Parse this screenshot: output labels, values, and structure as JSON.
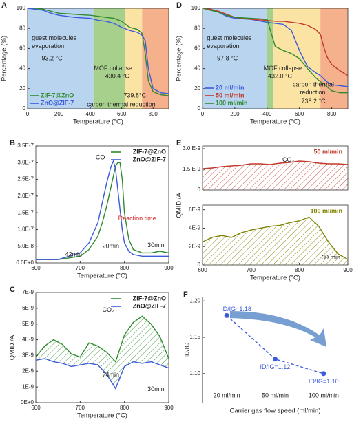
{
  "chart_data": [
    {
      "panel": "A",
      "type": "line",
      "xlabel": "Temperature (°C)",
      "ylabel": "Percentage (%)",
      "xlim": [
        0,
        900
      ],
      "ylim": [
        0,
        100
      ],
      "xticks": [
        0,
        200,
        400,
        600,
        800
      ],
      "yticks": [
        0,
        20,
        40,
        60,
        80,
        100
      ],
      "regions": [
        {
          "from": 0,
          "to": 420,
          "color": "#b8d4ee"
        },
        {
          "from": 420,
          "to": 620,
          "color": "#a8d08d"
        },
        {
          "from": 620,
          "to": 730,
          "color": "#fbe3a4"
        },
        {
          "from": 730,
          "to": 900,
          "color": "#f5b08c"
        }
      ],
      "x": [
        0,
        50,
        100,
        150,
        200,
        300,
        400,
        450,
        500,
        550,
        600,
        650,
        700,
        730,
        750,
        770,
        800,
        850,
        900
      ],
      "series": [
        {
          "name": "ZIF-7@ZnO",
          "color": "#2e8b2e",
          "values": [
            100,
            100,
            99,
            97,
            95,
            94,
            93,
            92,
            91,
            90,
            87,
            81,
            79,
            75,
            55,
            28,
            17,
            14,
            13
          ]
        },
        {
          "name": "ZnO@ZIF-7",
          "color": "#3b5bdb",
          "values": [
            100,
            99,
            98,
            95,
            93,
            91,
            90,
            88,
            87,
            85,
            81,
            78,
            76,
            73,
            68,
            40,
            20,
            16,
            15
          ]
        }
      ],
      "legend": "lower left",
      "annotations": [
        "guest molecules",
        "evaporation",
        "93.2 °C",
        "MOF collapse",
        "430.4 °C",
        "739.8°C",
        "carbon thermal reduction"
      ]
    },
    {
      "panel": "B",
      "type": "line",
      "xlabel": "Temperature (°C)",
      "xlim": [
        600,
        900
      ],
      "ylim": [
        0,
        3.5e-07
      ],
      "xticks": [
        600,
        700,
        800,
        900
      ],
      "yticks": [
        {
          "value": 0,
          "label": "0.0E+0"
        },
        {
          "value": 5e-08,
          "label": "5.0E-8"
        },
        {
          "value": 1e-07,
          "label": "1.0E-7"
        },
        {
          "value": 1.5e-07,
          "label": "1.5E-7"
        },
        {
          "value": 2e-07,
          "label": "2.0E-7"
        },
        {
          "value": 2.5e-07,
          "label": "2.5E-7"
        },
        {
          "value": 3e-07,
          "label": "3.0E-7"
        },
        {
          "value": 3.5e-07,
          "label": "3.5E-7"
        }
      ],
      "x": [
        600,
        650,
        700,
        720,
        740,
        750,
        760,
        770,
        775,
        780,
        785,
        790,
        795,
        800,
        810,
        820,
        840,
        860,
        880,
        900
      ],
      "series": [
        {
          "name": "ZIF-7@ZnO",
          "color": "#2e8b2e",
          "values": [
            1e-08,
            1e-08,
            2e-08,
            4e-08,
            8e-08,
            1.2e-07,
            1.7e-07,
            2.3e-07,
            2.6e-07,
            2.9e-07,
            3e-07,
            3e-07,
            2.5e-07,
            1.5e-07,
            7e-08,
            4e-08,
            3e-08,
            3e-08,
            3.5e-08,
            3e-08
          ]
        },
        {
          "name": "ZnO@ZIF-7",
          "color": "#3b5bdb",
          "values": [
            1e-08,
            1e-08,
            3e-08,
            6e-08,
            1.2e-07,
            1.8e-07,
            2.4e-07,
            2.9e-07,
            3.05e-07,
            2.8e-07,
            2.2e-07,
            1.6e-07,
            1e-07,
            6e-08,
            3.5e-08,
            2.5e-08,
            2e-08,
            2e-08,
            2e-08,
            2e-08
          ]
        }
      ],
      "legend": "upper right",
      "annotations": [
        "CO",
        "Reaction time",
        "20min",
        "42min",
        "30min"
      ]
    },
    {
      "panel": "C",
      "type": "line",
      "xlabel": "Temperature (°C)",
      "ylabel": "QMID /A",
      "xlim": [
        600,
        900
      ],
      "ylim": [
        0,
        7e-09
      ],
      "xticks": [
        600,
        700,
        800,
        900
      ],
      "yticks": [
        {
          "value": 0,
          "label": "0E+0"
        },
        {
          "value": 1e-09,
          "label": "1E-9"
        },
        {
          "value": 2e-09,
          "label": "2E-9"
        },
        {
          "value": 3e-09,
          "label": "3E-9"
        },
        {
          "value": 4e-09,
          "label": "4E-9"
        },
        {
          "value": 5e-09,
          "label": "5E-9"
        },
        {
          "value": 6e-09,
          "label": "6E-9"
        },
        {
          "value": 7e-09,
          "label": "7E-9"
        }
      ],
      "x": [
        600,
        620,
        640,
        660,
        680,
        700,
        720,
        740,
        760,
        780,
        800,
        820,
        840,
        860,
        880,
        900
      ],
      "series": [
        {
          "name": "ZIF-7@ZnO",
          "color": "#2e8b2e",
          "hatch": true,
          "values": [
            2.9e-09,
            3.6e-09,
            4e-09,
            3.7e-09,
            3.1e-09,
            2.9e-09,
            3.8e-09,
            3.6e-09,
            3.2e-09,
            2.6e-09,
            4.3e-09,
            5.1e-09,
            5.5e-09,
            5e-09,
            4.2e-09,
            2.8e-09
          ]
        },
        {
          "name": "ZnO@ZIF-7",
          "color": "#3b5bdb",
          "values": [
            2.7e-09,
            2.8e-09,
            2.6e-09,
            2.5e-09,
            2.3e-09,
            2.4e-09,
            2.5e-09,
            2.4e-09,
            1.8e-09,
            9e-10,
            2.3e-09,
            2.6e-09,
            2.5e-09,
            2.6e-09,
            2.4e-09,
            2.2e-09
          ]
        }
      ],
      "legend": "upper right",
      "annotations": [
        "CO₂",
        "74min",
        "30min"
      ]
    },
    {
      "panel": "D",
      "type": "line",
      "xlabel": "Temperature (°C)",
      "ylabel": "Percentage (%)",
      "xlim": [
        0,
        900
      ],
      "ylim": [
        0,
        100
      ],
      "xticks": [
        0,
        200,
        400,
        600,
        800
      ],
      "yticks": [
        0,
        20,
        40,
        60,
        80,
        100
      ],
      "regions": [
        {
          "from": 0,
          "to": 400,
          "color": "#b8d4ee"
        },
        {
          "from": 400,
          "to": 440,
          "color": "#a8d08d"
        },
        {
          "from": 440,
          "to": 730,
          "color": "#fbe3a4"
        },
        {
          "from": 730,
          "to": 900,
          "color": "#f5b08c"
        }
      ],
      "x": [
        0,
        50,
        100,
        150,
        200,
        300,
        400,
        450,
        500,
        550,
        600,
        650,
        700,
        730,
        750,
        770,
        800,
        850,
        900
      ],
      "series": [
        {
          "name": "20 ml/min",
          "color": "#3b5bdb",
          "values": [
            100,
            99,
            96,
            92,
            90,
            89,
            86,
            85,
            84,
            78,
            58,
            42,
            36,
            33,
            30,
            27,
            24,
            23,
            22
          ]
        },
        {
          "name": "50 ml/min",
          "color": "#c0392b",
          "values": [
            100,
            99,
            97,
            94,
            91,
            89,
            88,
            87,
            87,
            86,
            85,
            83,
            79,
            74,
            62,
            52,
            44,
            38,
            33
          ]
        },
        {
          "name": "100 ml/min",
          "color": "#2e8b2e",
          "values": [
            100,
            98,
            96,
            93,
            91,
            90,
            89,
            62,
            58,
            55,
            50,
            40,
            31,
            27,
            25,
            22,
            18,
            16,
            16
          ]
        }
      ],
      "legend": "lower left",
      "annotations": [
        "guest molecules",
        "evaporation",
        "97.8 °C",
        "MOF collapse",
        "432.0 °C",
        "carbon thermal",
        "reduction",
        "738.2 °C"
      ]
    },
    {
      "panel": "E",
      "type": "line",
      "xlim": [
        600,
        900
      ],
      "ylim": [
        0,
        3.2e-09
      ],
      "yticks": [
        0,
        {
          "value": 1.5e-09,
          "label": "1.5 E-9"
        },
        {
          "value": 3e-09,
          "label": "3.0 E-9"
        }
      ],
      "x": [
        600,
        620,
        640,
        660,
        680,
        700,
        720,
        740,
        760,
        780,
        800,
        820,
        840,
        860,
        880,
        900
      ],
      "series": [
        {
          "name": "50 ml/min",
          "color": "#c0392b",
          "hatch": true,
          "values": [
            1.55e-09,
            1.6e-09,
            1.7e-09,
            1.75e-09,
            1.8e-09,
            1.9e-09,
            1.9e-09,
            1.85e-09,
            1.95e-09,
            2e-09,
            2.1e-09,
            2.05e-09,
            1.95e-09,
            1.9e-09,
            1.9e-09,
            1.85e-09
          ]
        }
      ],
      "legend": "upper right",
      "annotations": [
        "CO₂"
      ]
    },
    {
      "type": "line",
      "xlabel": "Temperature (°C)",
      "ylabel": "QMID /A",
      "xlim": [
        600,
        900
      ],
      "ylim": [
        0,
        6.5e-09
      ],
      "xticks": [
        600,
        700,
        800,
        900
      ],
      "yticks": [
        0,
        {
          "value": 2e-09,
          "label": "2E-9"
        },
        {
          "value": 4e-09,
          "label": "4E-9"
        },
        {
          "value": 6e-09,
          "label": "6E-9"
        }
      ],
      "x": [
        600,
        620,
        640,
        660,
        680,
        700,
        720,
        740,
        760,
        780,
        800,
        820,
        840,
        860,
        880,
        900
      ],
      "series": [
        {
          "name": "100 ml/min",
          "color": "#808000",
          "hatch": true,
          "values": [
            2.5e-09,
            3e-09,
            3.2e-09,
            3e-09,
            3.5e-09,
            3.8e-09,
            4e-09,
            4.2e-09,
            4.3e-09,
            4.6e-09,
            4.8e-09,
            5.2e-09,
            4.2e-09,
            2.5e-09,
            1.2e-09,
            6e-10
          ]
        }
      ],
      "legend": "upper right",
      "annotations": [
        "30 min"
      ]
    },
    {
      "panel": "F",
      "type": "line",
      "xlabel": "Carrier gas flow speed (ml/min)",
      "ylabel": "ID/IG",
      "categories": [
        "20 ml/min",
        "50 ml/min",
        "100 ml/min"
      ],
      "values": [
        1.18,
        1.12,
        1.1
      ],
      "value_labels": [
        "ID/IG=1.18",
        "ID/IG=1.12",
        "ID/IG=1.10"
      ],
      "ylim": [
        1.06,
        1.205
      ],
      "yticks": [
        {
          "value": 1.1,
          "label": "1.10"
        },
        1.15,
        {
          "value": 1.2,
          "label": "1.20"
        }
      ],
      "color": "#3b5bdb",
      "linestyle": "dashed"
    }
  ]
}
